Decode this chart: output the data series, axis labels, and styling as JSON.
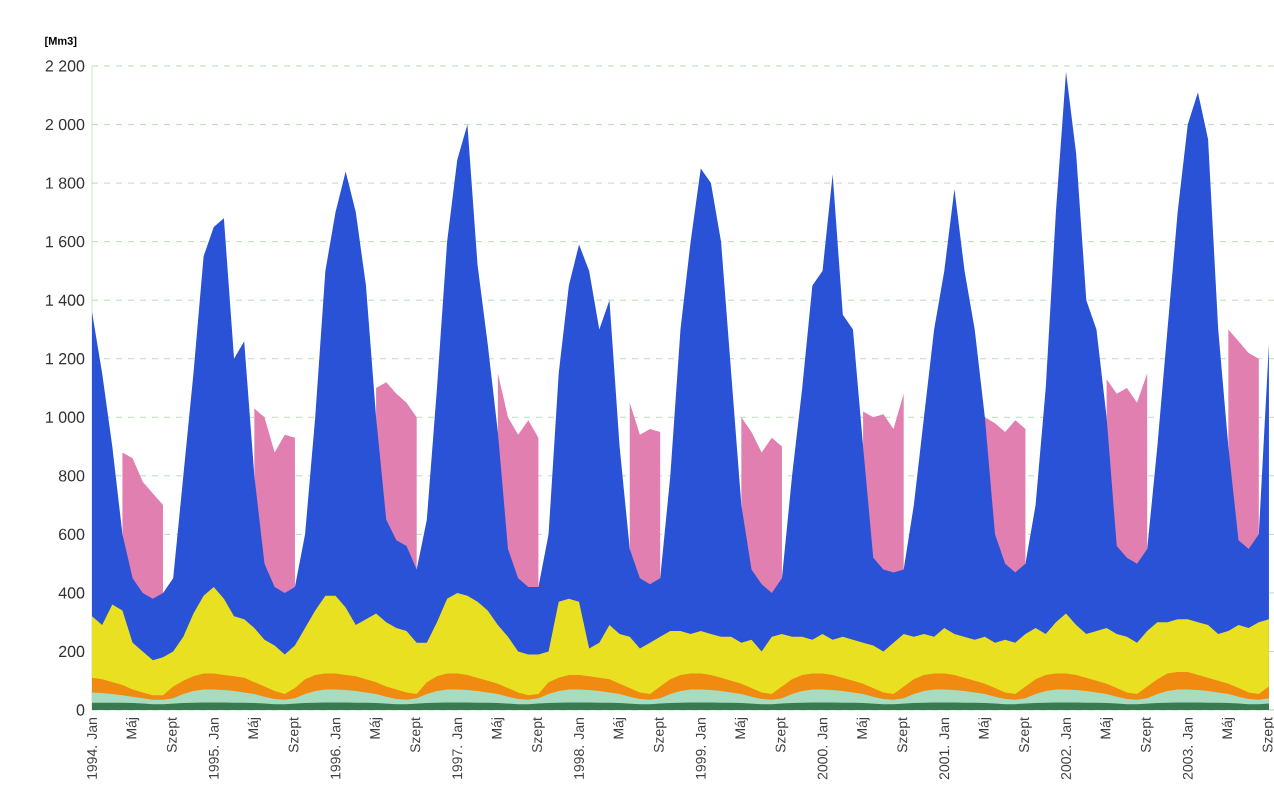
{
  "chart_data": {
    "type": "area",
    "ylabel": "[Mm3]",
    "grid": "y",
    "categories": [
      "1994. Jan",
      null,
      null,
      null,
      "Máj",
      null,
      null,
      null,
      "Szept",
      null,
      null,
      null,
      "1995. Jan",
      null,
      null,
      null,
      "Máj",
      null,
      null,
      null,
      "Szept",
      null,
      null,
      null,
      "1996. Jan",
      null,
      null,
      null,
      "Máj",
      null,
      null,
      null,
      "Szept",
      null,
      null,
      null,
      "1997. Jan",
      null,
      null,
      null,
      "Máj",
      null,
      null,
      null,
      "Szept",
      null,
      null,
      null,
      "1998. Jan",
      null,
      null,
      null,
      "Máj",
      null,
      null,
      null,
      "Szept",
      null,
      null,
      null,
      "1999. Jan",
      null,
      null,
      null,
      "Máj",
      null,
      null,
      null,
      "Szept",
      null,
      null,
      null,
      "2000. Jan",
      null,
      null,
      null,
      "Máj",
      null,
      null,
      null,
      "Szept",
      null,
      null,
      null,
      "2001. Jan",
      null,
      null,
      null,
      "Máj",
      null,
      null,
      null,
      "Szept",
      null,
      null,
      null,
      "2002. Jan",
      null,
      null,
      null,
      "Máj",
      null,
      null,
      null,
      "Szept",
      null,
      null,
      null,
      "2003. Jan",
      null,
      null,
      null,
      "Máj",
      null,
      null,
      null,
      "Szept"
    ],
    "ylim": [
      0,
      2200
    ],
    "yticks": [
      0,
      200,
      400,
      600,
      800,
      {
        "value": 1000,
        "label": "1 000"
      },
      {
        "value": 1200,
        "label": "1 200"
      },
      {
        "value": 1400,
        "label": "1 400"
      },
      {
        "value": 1600,
        "label": "1 600"
      },
      {
        "value": 1800,
        "label": "1 800"
      },
      {
        "value": 2000,
        "label": "2 000"
      },
      {
        "value": 2200,
        "label": "2 200"
      }
    ],
    "series": [
      {
        "color": "#e07fb0",
        "values": [
          null,
          null,
          null,
          880,
          860,
          780,
          740,
          700,
          null,
          null,
          null,
          null,
          null,
          null,
          null,
          null,
          1030,
          1000,
          880,
          940,
          930,
          null,
          null,
          null,
          null,
          null,
          null,
          null,
          1100,
          1120,
          1080,
          1050,
          1000,
          null,
          null,
          null,
          null,
          null,
          null,
          null,
          1150,
          1000,
          940,
          990,
          930,
          null,
          null,
          null,
          null,
          null,
          null,
          null,
          null,
          1050,
          940,
          960,
          950,
          null,
          null,
          null,
          null,
          null,
          null,
          null,
          1000,
          950,
          880,
          930,
          900,
          null,
          null,
          null,
          null,
          null,
          null,
          null,
          1020,
          1000,
          1010,
          960,
          1080,
          null,
          null,
          null,
          null,
          null,
          null,
          null,
          1000,
          980,
          950,
          990,
          960,
          null,
          null,
          null,
          null,
          null,
          null,
          null,
          1130,
          1080,
          1100,
          1050,
          1150,
          null,
          null,
          null,
          null,
          null,
          null,
          null,
          1300,
          1260,
          1220,
          1200,
          null
        ]
      },
      {
        "color": "#2a52d6",
        "values": [
          1360,
          1150,
          900,
          600,
          450,
          400,
          380,
          400,
          450,
          800,
          1150,
          1550,
          1650,
          1680,
          1200,
          1260,
          800,
          500,
          420,
          400,
          420,
          600,
          1000,
          1500,
          1700,
          1840,
          1700,
          1450,
          1000,
          650,
          580,
          560,
          480,
          650,
          1100,
          1600,
          1880,
          2000,
          1520,
          1250,
          950,
          550,
          450,
          420,
          420,
          600,
          1150,
          1450,
          1590,
          1500,
          1300,
          1400,
          900,
          550,
          450,
          430,
          450,
          800,
          1300,
          1600,
          1850,
          1800,
          1600,
          1150,
          700,
          480,
          430,
          400,
          450,
          800,
          1100,
          1450,
          1500,
          1830,
          1350,
          1300,
          900,
          520,
          480,
          470,
          480,
          700,
          1000,
          1300,
          1500,
          1780,
          1500,
          1300,
          1000,
          600,
          500,
          470,
          500,
          700,
          1100,
          1700,
          2180,
          1900,
          1400,
          1300,
          1000,
          560,
          520,
          500,
          550,
          900,
          1300,
          1700,
          2000,
          2110,
          1950,
          1300,
          900,
          580,
          550,
          600,
          1250
        ]
      },
      {
        "color": "#e8e020",
        "values": [
          320,
          290,
          360,
          340,
          230,
          200,
          170,
          180,
          200,
          250,
          330,
          390,
          420,
          380,
          320,
          310,
          280,
          240,
          220,
          190,
          220,
          280,
          340,
          390,
          390,
          350,
          290,
          310,
          330,
          300,
          280,
          270,
          230,
          230,
          300,
          380,
          400,
          390,
          370,
          340,
          290,
          250,
          200,
          190,
          190,
          200,
          370,
          380,
          370,
          210,
          230,
          290,
          260,
          250,
          210,
          230,
          250,
          270,
          270,
          260,
          270,
          260,
          250,
          250,
          230,
          240,
          200,
          250,
          260,
          250,
          250,
          240,
          260,
          240,
          250,
          240,
          230,
          220,
          200,
          230,
          260,
          250,
          260,
          250,
          280,
          260,
          250,
          240,
          250,
          230,
          240,
          230,
          260,
          280,
          260,
          300,
          330,
          290,
          260,
          270,
          280,
          260,
          250,
          230,
          270,
          300,
          300,
          310,
          310,
          300,
          290,
          260,
          270,
          290,
          280,
          300,
          310
        ]
      },
      {
        "color": "#f08a10",
        "values": [
          110,
          105,
          95,
          85,
          70,
          60,
          50,
          50,
          80,
          100,
          115,
          125,
          125,
          120,
          115,
          110,
          95,
          80,
          65,
          55,
          75,
          105,
          120,
          125,
          125,
          120,
          115,
          105,
          95,
          80,
          70,
          60,
          55,
          95,
          115,
          125,
          125,
          120,
          110,
          100,
          90,
          75,
          60,
          50,
          55,
          95,
          110,
          120,
          120,
          115,
          110,
          105,
          90,
          75,
          60,
          55,
          80,
          105,
          120,
          125,
          125,
          120,
          110,
          100,
          90,
          75,
          60,
          55,
          80,
          105,
          120,
          125,
          125,
          120,
          110,
          100,
          90,
          75,
          60,
          55,
          80,
          105,
          120,
          125,
          125,
          120,
          110,
          100,
          90,
          75,
          60,
          55,
          80,
          105,
          120,
          125,
          125,
          120,
          110,
          100,
          90,
          75,
          60,
          55,
          80,
          105,
          125,
          130,
          130,
          120,
          110,
          100,
          90,
          75,
          60,
          55,
          80
        ]
      },
      {
        "color": "#a8dcc0",
        "values": [
          60,
          58,
          55,
          50,
          45,
          40,
          35,
          35,
          40,
          55,
          65,
          70,
          70,
          68,
          65,
          60,
          55,
          45,
          38,
          35,
          40,
          55,
          65,
          70,
          70,
          68,
          65,
          60,
          55,
          45,
          38,
          35,
          40,
          55,
          65,
          70,
          70,
          68,
          65,
          60,
          55,
          45,
          38,
          35,
          40,
          55,
          65,
          70,
          70,
          68,
          65,
          60,
          55,
          45,
          38,
          35,
          40,
          55,
          65,
          70,
          70,
          68,
          65,
          60,
          55,
          45,
          38,
          35,
          40,
          55,
          65,
          70,
          70,
          68,
          65,
          60,
          55,
          45,
          38,
          35,
          40,
          55,
          65,
          70,
          70,
          68,
          65,
          60,
          55,
          45,
          38,
          35,
          40,
          55,
          65,
          70,
          70,
          68,
          65,
          60,
          55,
          45,
          38,
          35,
          40,
          55,
          65,
          70,
          70,
          68,
          65,
          60,
          55,
          45,
          38,
          35,
          40
        ]
      },
      {
        "color": "#3a7a50",
        "values": [
          25,
          25,
          25,
          25,
          24,
          22,
          20,
          20,
          22,
          24,
          25,
          26,
          26,
          26,
          25,
          25,
          24,
          22,
          20,
          20,
          22,
          24,
          25,
          26,
          26,
          26,
          25,
          25,
          24,
          22,
          20,
          20,
          22,
          24,
          25,
          26,
          26,
          26,
          25,
          25,
          24,
          22,
          20,
          20,
          22,
          24,
          25,
          26,
          26,
          26,
          25,
          25,
          24,
          22,
          20,
          20,
          22,
          24,
          25,
          26,
          26,
          26,
          25,
          25,
          24,
          22,
          20,
          20,
          22,
          24,
          25,
          26,
          26,
          26,
          25,
          25,
          24,
          22,
          20,
          20,
          22,
          24,
          25,
          26,
          26,
          26,
          25,
          25,
          24,
          22,
          20,
          20,
          22,
          24,
          25,
          26,
          26,
          26,
          25,
          25,
          24,
          22,
          20,
          20,
          22,
          24,
          25,
          26,
          26,
          26,
          25,
          25,
          24,
          22,
          20,
          20,
          22
        ]
      }
    ]
  }
}
